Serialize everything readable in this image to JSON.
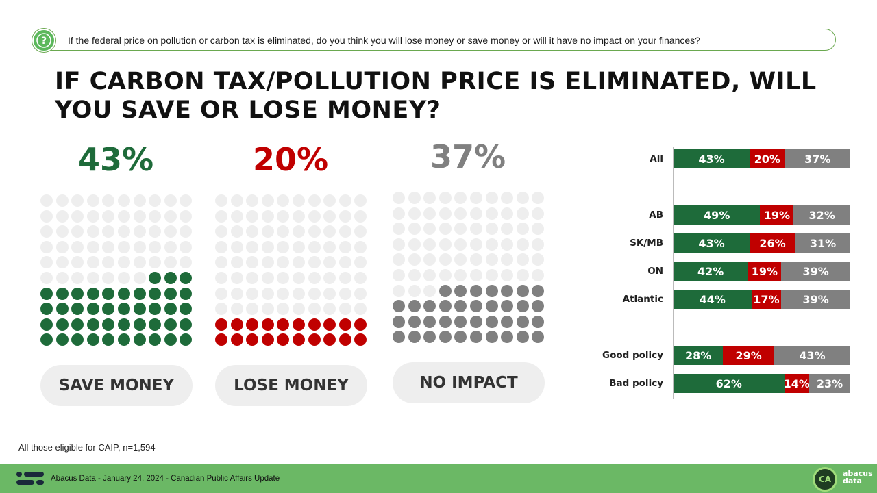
{
  "question": {
    "icon": "question-icon",
    "text": "If the federal price on pollution or carbon tax is eliminated, do you think you will lose money or save money or will it have no impact on your finances?"
  },
  "headline": {
    "line1": "IF CARBON TAX/POLLUTION PRICE IS ELIMINATED, WILL",
    "line2": "YOU SAVE OR LOSE MONEY?"
  },
  "colors": {
    "save": "#1e6b3a",
    "lose": "#c00000",
    "no_impact": "#808080",
    "dot_empty": "#eeeeee"
  },
  "chart_data": [
    {
      "type": "waffle",
      "panels": [
        {
          "key": "save",
          "label": "SAVE MONEY",
          "value": 43,
          "value_label": "43%"
        },
        {
          "key": "lose",
          "label": "LOSE MONEY",
          "value": 20,
          "value_label": "20%"
        },
        {
          "key": "no_impact",
          "label": "NO IMPACT",
          "value": 37,
          "value_label": "37%"
        }
      ],
      "grid": "10x10"
    },
    {
      "type": "bar",
      "orientation": "horizontal",
      "stacked": true,
      "categories": [
        "All",
        "AB",
        "SK/MB",
        "ON",
        "Atlantic",
        "Good policy",
        "Bad policy"
      ],
      "series": [
        {
          "key": "save",
          "values": [
            43,
            49,
            43,
            42,
            44,
            28,
            62
          ],
          "labels": [
            "43%",
            "49%",
            "43%",
            "42%",
            "44%",
            "28%",
            "62%"
          ]
        },
        {
          "key": "lose",
          "values": [
            20,
            19,
            26,
            19,
            17,
            29,
            14
          ],
          "labels": [
            "20%",
            "19%",
            "26%",
            "19%",
            "17%",
            "29%",
            "14%"
          ]
        },
        {
          "key": "no_impact",
          "values": [
            37,
            32,
            31,
            39,
            39,
            43,
            23
          ],
          "labels": [
            "37%",
            "32%",
            "31%",
            "39%",
            "39%",
            "43%",
            "23%"
          ]
        }
      ],
      "groups": [
        [
          "All"
        ],
        [
          "AB",
          "SK/MB",
          "ON",
          "Atlantic"
        ],
        [
          "Good policy",
          "Bad policy"
        ]
      ],
      "xlim": [
        0,
        100
      ]
    }
  ],
  "base_note": "All those eligible for CAIP, n=1,594",
  "footer": {
    "logo": "abacus-lines-icon",
    "text": "Abacus Data - January 24, 2024 - Canadian Public Affairs Update",
    "badge": "CA",
    "brand_line1": "abacus",
    "brand_line2": "data"
  }
}
